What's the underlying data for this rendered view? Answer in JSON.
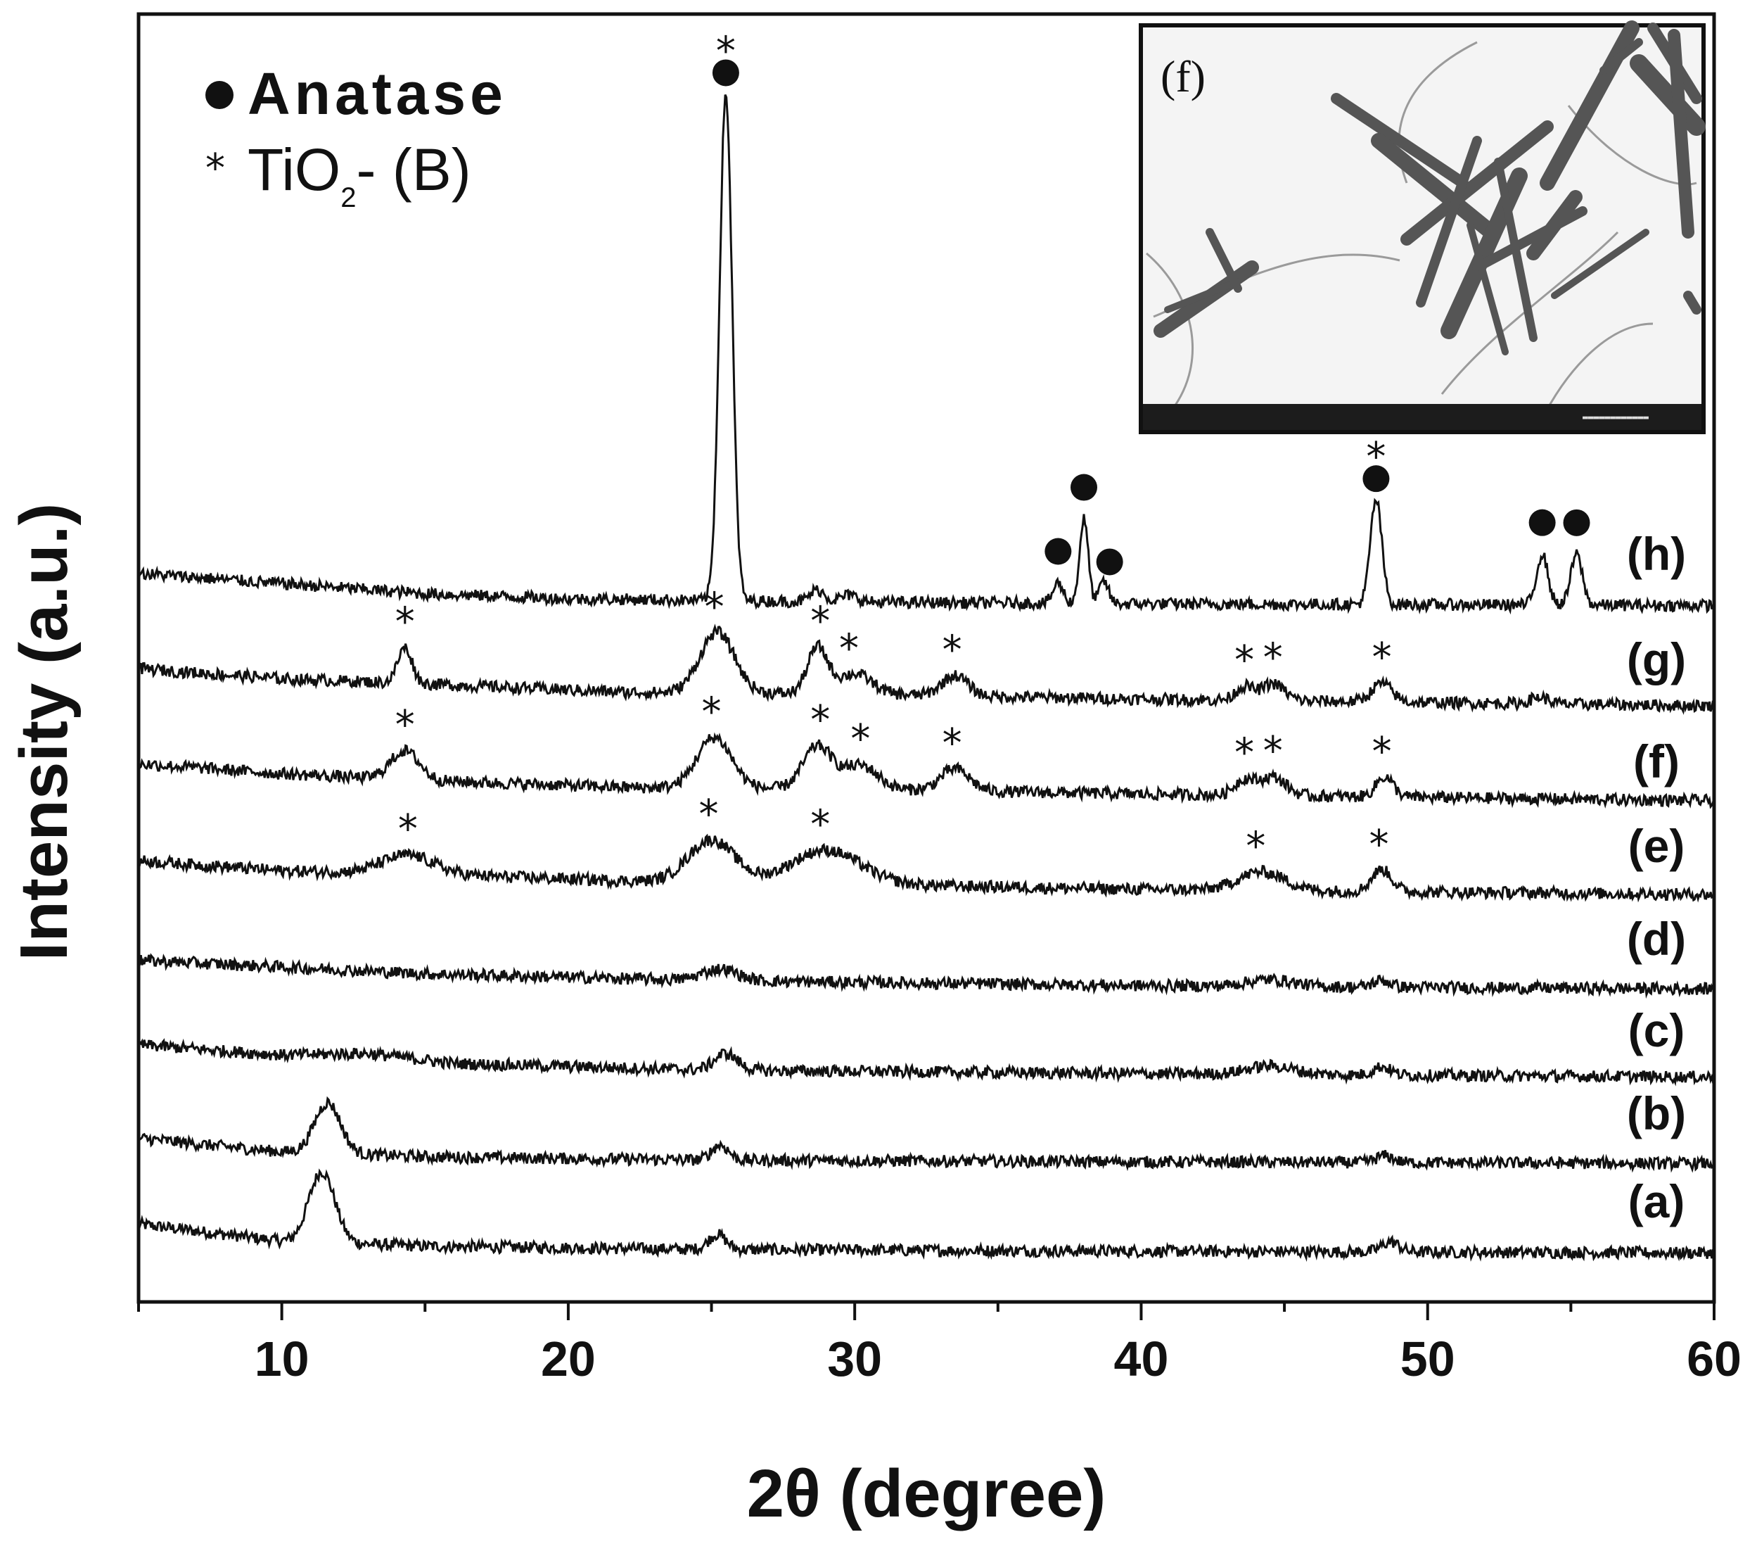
{
  "chart_data": {
    "type": "line",
    "title": "",
    "xlabel": "2θ (degree)",
    "ylabel": "Intensity (a.u.)",
    "xlim": [
      5,
      60
    ],
    "xticks": [
      10,
      20,
      30,
      40,
      50,
      60
    ],
    "y_ticks_shown": false,
    "legend": [
      {
        "symbol": "●",
        "label": "Anatase"
      },
      {
        "symbol": "*",
        "label": "TiO₂-(B)",
        "text_main": "TiO",
        "text_sub": "2",
        "text_tail": "- (B)"
      }
    ],
    "legend_placement": "top-left",
    "inset": {
      "label": "(f)",
      "description_type": "electron-microscope image",
      "placement": "top-right"
    },
    "series": [
      {
        "name": "(a)",
        "baseline": 0.15,
        "background": [
          [
            5,
            0.9
          ],
          [
            8,
            0.6
          ],
          [
            10,
            0.4
          ],
          [
            15,
            0.25
          ],
          [
            25,
            0.15
          ],
          [
            40,
            0.1
          ],
          [
            60,
            0.05
          ]
        ],
        "peaks": [
          {
            "x": 11.4,
            "h": 2.1,
            "w": 0.45
          },
          {
            "x": 25.2,
            "h": 0.45,
            "w": 0.3
          },
          {
            "x": 48.7,
            "h": 0.3,
            "w": 0.3
          }
        ],
        "markers": []
      },
      {
        "name": "(b)",
        "baseline": 0.15,
        "background": [
          [
            5,
            0.8
          ],
          [
            8,
            0.55
          ],
          [
            10,
            0.4
          ],
          [
            15,
            0.25
          ],
          [
            25,
            0.15
          ],
          [
            40,
            0.1
          ],
          [
            60,
            0.05
          ]
        ],
        "peaks": [
          {
            "x": 11.6,
            "h": 1.5,
            "w": 0.45
          },
          {
            "x": 25.3,
            "h": 0.45,
            "w": 0.3
          },
          {
            "x": 48.5,
            "h": 0.2,
            "w": 0.3
          }
        ],
        "markers": []
      },
      {
        "name": "(c)",
        "baseline": 0.15,
        "background": [
          [
            5,
            1.0
          ],
          [
            10,
            0.7
          ],
          [
            13,
            0.75
          ],
          [
            16,
            0.45
          ],
          [
            25,
            0.25
          ],
          [
            40,
            0.15
          ],
          [
            60,
            0.05
          ]
        ],
        "peaks": [
          {
            "x": 25.5,
            "h": 0.5,
            "w": 0.4
          },
          {
            "x": 44.5,
            "h": 0.25,
            "w": 0.8
          },
          {
            "x": 48.4,
            "h": 0.25,
            "w": 0.3
          }
        ],
        "markers": []
      },
      {
        "name": "(d)",
        "baseline": 0.15,
        "background": [
          [
            5,
            0.9
          ],
          [
            10,
            0.7
          ],
          [
            15,
            0.5
          ],
          [
            25,
            0.3
          ],
          [
            40,
            0.15
          ],
          [
            60,
            0.05
          ]
        ],
        "peaks": [
          {
            "x": 25.3,
            "h": 0.35,
            "w": 0.6
          },
          {
            "x": 44.5,
            "h": 0.2,
            "w": 0.8
          },
          {
            "x": 48.4,
            "h": 0.2,
            "w": 0.3
          }
        ],
        "markers": []
      },
      {
        "name": "(e)",
        "baseline": 0.15,
        "background": [
          [
            5,
            1.1
          ],
          [
            10,
            0.8
          ],
          [
            15,
            0.7
          ],
          [
            22,
            0.5
          ],
          [
            30,
            0.4
          ],
          [
            40,
            0.25
          ],
          [
            60,
            0.1
          ]
        ],
        "peaks": [
          {
            "x": 14.4,
            "h": 0.55,
            "w": 0.9
          },
          {
            "x": 25.0,
            "h": 1.25,
            "w": 0.8
          },
          {
            "x": 29.0,
            "h": 1.0,
            "w": 1.2
          },
          {
            "x": 44.2,
            "h": 0.55,
            "w": 0.8
          },
          {
            "x": 48.4,
            "h": 0.65,
            "w": 0.35
          }
        ],
        "markers": [
          {
            "x": 14.4,
            "symbol": "*"
          },
          {
            "x": 24.9,
            "symbol": "*"
          },
          {
            "x": 28.8,
            "symbol": "*"
          },
          {
            "x": 44.0,
            "symbol": "*"
          },
          {
            "x": 48.3,
            "symbol": "*"
          }
        ]
      },
      {
        "name": "(f)",
        "baseline": 0.15,
        "background": [
          [
            5,
            1.2
          ],
          [
            10,
            0.9
          ],
          [
            15,
            0.7
          ],
          [
            22,
            0.5
          ],
          [
            30,
            0.45
          ],
          [
            40,
            0.3
          ],
          [
            60,
            0.1
          ]
        ],
        "peaks": [
          {
            "x": 14.3,
            "h": 0.85,
            "w": 0.5
          },
          {
            "x": 25.1,
            "h": 1.5,
            "w": 0.6
          },
          {
            "x": 28.7,
            "h": 1.25,
            "w": 0.5
          },
          {
            "x": 30.2,
            "h": 0.7,
            "w": 0.6
          },
          {
            "x": 33.5,
            "h": 0.65,
            "w": 0.5
          },
          {
            "x": 43.6,
            "h": 0.45,
            "w": 0.35
          },
          {
            "x": 44.6,
            "h": 0.55,
            "w": 0.45
          },
          {
            "x": 48.5,
            "h": 0.6,
            "w": 0.3
          }
        ],
        "markers": [
          {
            "x": 14.3,
            "symbol": "*"
          },
          {
            "x": 25.0,
            "symbol": "*"
          },
          {
            "x": 28.8,
            "symbol": "*"
          },
          {
            "x": 30.2,
            "symbol": "*"
          },
          {
            "x": 33.4,
            "symbol": "*"
          },
          {
            "x": 43.6,
            "symbol": "*"
          },
          {
            "x": 44.6,
            "symbol": "*"
          },
          {
            "x": 48.4,
            "symbol": "*"
          }
        ]
      },
      {
        "name": "(g)",
        "baseline": 0.15,
        "background": [
          [
            5,
            1.2
          ],
          [
            10,
            0.9
          ],
          [
            15,
            0.75
          ],
          [
            22,
            0.5
          ],
          [
            30,
            0.45
          ],
          [
            40,
            0.3
          ],
          [
            60,
            0.1
          ]
        ],
        "peaks": [
          {
            "x": 14.3,
            "h": 1.05,
            "w": 0.25
          },
          {
            "x": 25.2,
            "h": 1.8,
            "w": 0.6
          },
          {
            "x": 28.7,
            "h": 1.35,
            "w": 0.35
          },
          {
            "x": 30.0,
            "h": 0.6,
            "w": 0.6
          },
          {
            "x": 33.5,
            "h": 0.6,
            "w": 0.45
          },
          {
            "x": 43.6,
            "h": 0.4,
            "w": 0.3
          },
          {
            "x": 44.6,
            "h": 0.5,
            "w": 0.4
          },
          {
            "x": 48.4,
            "h": 0.55,
            "w": 0.35
          },
          {
            "x": 53.9,
            "h": 0.2,
            "w": 0.3
          }
        ],
        "markers": [
          {
            "x": 14.3,
            "symbol": "*"
          },
          {
            "x": 25.1,
            "symbol": "*"
          },
          {
            "x": 28.8,
            "symbol": "*"
          },
          {
            "x": 29.8,
            "symbol": "*"
          },
          {
            "x": 33.4,
            "symbol": "*"
          },
          {
            "x": 43.6,
            "symbol": "*"
          },
          {
            "x": 44.6,
            "symbol": "*"
          },
          {
            "x": 48.4,
            "symbol": "*"
          }
        ]
      },
      {
        "name": "(h)",
        "baseline": 0.15,
        "background": [
          [
            5,
            1.0
          ],
          [
            10,
            0.7
          ],
          [
            15,
            0.4
          ],
          [
            20,
            0.25
          ],
          [
            30,
            0.15
          ],
          [
            40,
            0.1
          ],
          [
            60,
            0.05
          ]
        ],
        "peaks": [
          {
            "x": 25.5,
            "h": 15.0,
            "w": 0.22
          },
          {
            "x": 28.7,
            "h": 0.35,
            "w": 0.25
          },
          {
            "x": 29.8,
            "h": 0.2,
            "w": 0.3
          },
          {
            "x": 37.1,
            "h": 0.6,
            "w": 0.18
          },
          {
            "x": 38.0,
            "h": 2.5,
            "w": 0.15
          },
          {
            "x": 38.7,
            "h": 0.65,
            "w": 0.16
          },
          {
            "x": 48.2,
            "h": 3.1,
            "w": 0.2
          },
          {
            "x": 54.0,
            "h": 1.5,
            "w": 0.2
          },
          {
            "x": 55.2,
            "h": 1.5,
            "w": 0.2
          }
        ],
        "markers": [
          {
            "x": 25.5,
            "symbol": "●*"
          },
          {
            "x": 37.1,
            "symbol": "●"
          },
          {
            "x": 38.0,
            "symbol": "●"
          },
          {
            "x": 38.9,
            "symbol": "●"
          },
          {
            "x": 48.2,
            "symbol": "●*"
          },
          {
            "x": 54.0,
            "symbol": "●"
          },
          {
            "x": 55.2,
            "symbol": "●"
          }
        ]
      }
    ]
  }
}
